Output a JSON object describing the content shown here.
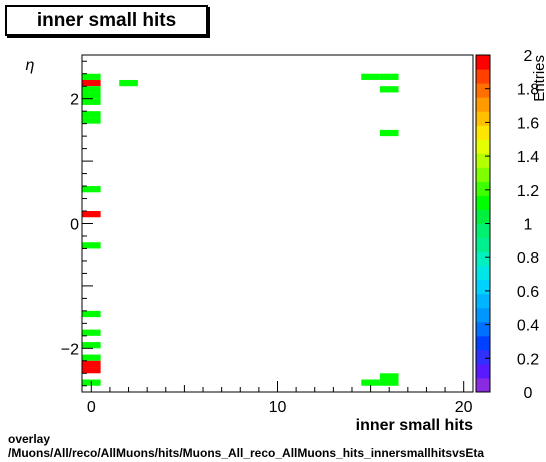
{
  "title": "inner small hits",
  "footer": {
    "line1": "overlay",
    "line2": "/Muons/All/reco/AllMuons/hits/Muons_All_reco_AllMuons_hits_innersmallhitsvsEta"
  },
  "chart_data": {
    "type": "heatmap",
    "title": "inner small hits",
    "xlabel": "inner small hits",
    "ylabel": "η",
    "zlabel": "Entries",
    "xlim": [
      -0.5,
      20.5
    ],
    "ylim": [
      -2.7,
      2.7
    ],
    "zlim": [
      0,
      2
    ],
    "xticks": [
      0,
      10,
      20
    ],
    "yticks": [
      -2,
      0,
      2
    ],
    "zticks": [
      0,
      0.2,
      0.4,
      0.6,
      0.8,
      1,
      1.2,
      1.4,
      1.6,
      1.8,
      2
    ],
    "bin_width_x": 1,
    "bin_height_y": 0.1,
    "colors": {
      "one": "#00ff00",
      "two": "#ff0000"
    },
    "bins": [
      {
        "x": 0,
        "y": 2.35,
        "z": 1
      },
      {
        "x": 0,
        "y": 2.25,
        "z": 2
      },
      {
        "x": 0,
        "y": 2.15,
        "z": 1
      },
      {
        "x": 0,
        "y": 2.05,
        "z": 1
      },
      {
        "x": 0,
        "y": 1.95,
        "z": 1
      },
      {
        "x": 0,
        "y": 1.75,
        "z": 1
      },
      {
        "x": 0,
        "y": 1.65,
        "z": 1
      },
      {
        "x": 0,
        "y": 0.55,
        "z": 1
      },
      {
        "x": 0,
        "y": 0.15,
        "z": 2
      },
      {
        "x": 0,
        "y": -0.35,
        "z": 1
      },
      {
        "x": 0,
        "y": -1.45,
        "z": 1
      },
      {
        "x": 0,
        "y": -1.75,
        "z": 1
      },
      {
        "x": 0,
        "y": -1.95,
        "z": 1
      },
      {
        "x": 0,
        "y": -2.15,
        "z": 1
      },
      {
        "x": 0,
        "y": -2.25,
        "z": 2
      },
      {
        "x": 0,
        "y": -2.35,
        "z": 2
      },
      {
        "x": 0,
        "y": -2.55,
        "z": 1
      },
      {
        "x": 2,
        "y": 2.25,
        "z": 1
      },
      {
        "x": 15,
        "y": 2.35,
        "z": 1
      },
      {
        "x": 15,
        "y": -2.55,
        "z": 1
      },
      {
        "x": 16,
        "y": 2.35,
        "z": 1
      },
      {
        "x": 16,
        "y": 2.15,
        "z": 1
      },
      {
        "x": 16,
        "y": 1.45,
        "z": 1
      },
      {
        "x": 16,
        "y": -2.45,
        "z": 1
      },
      {
        "x": 16,
        "y": -2.55,
        "z": 1
      }
    ]
  }
}
